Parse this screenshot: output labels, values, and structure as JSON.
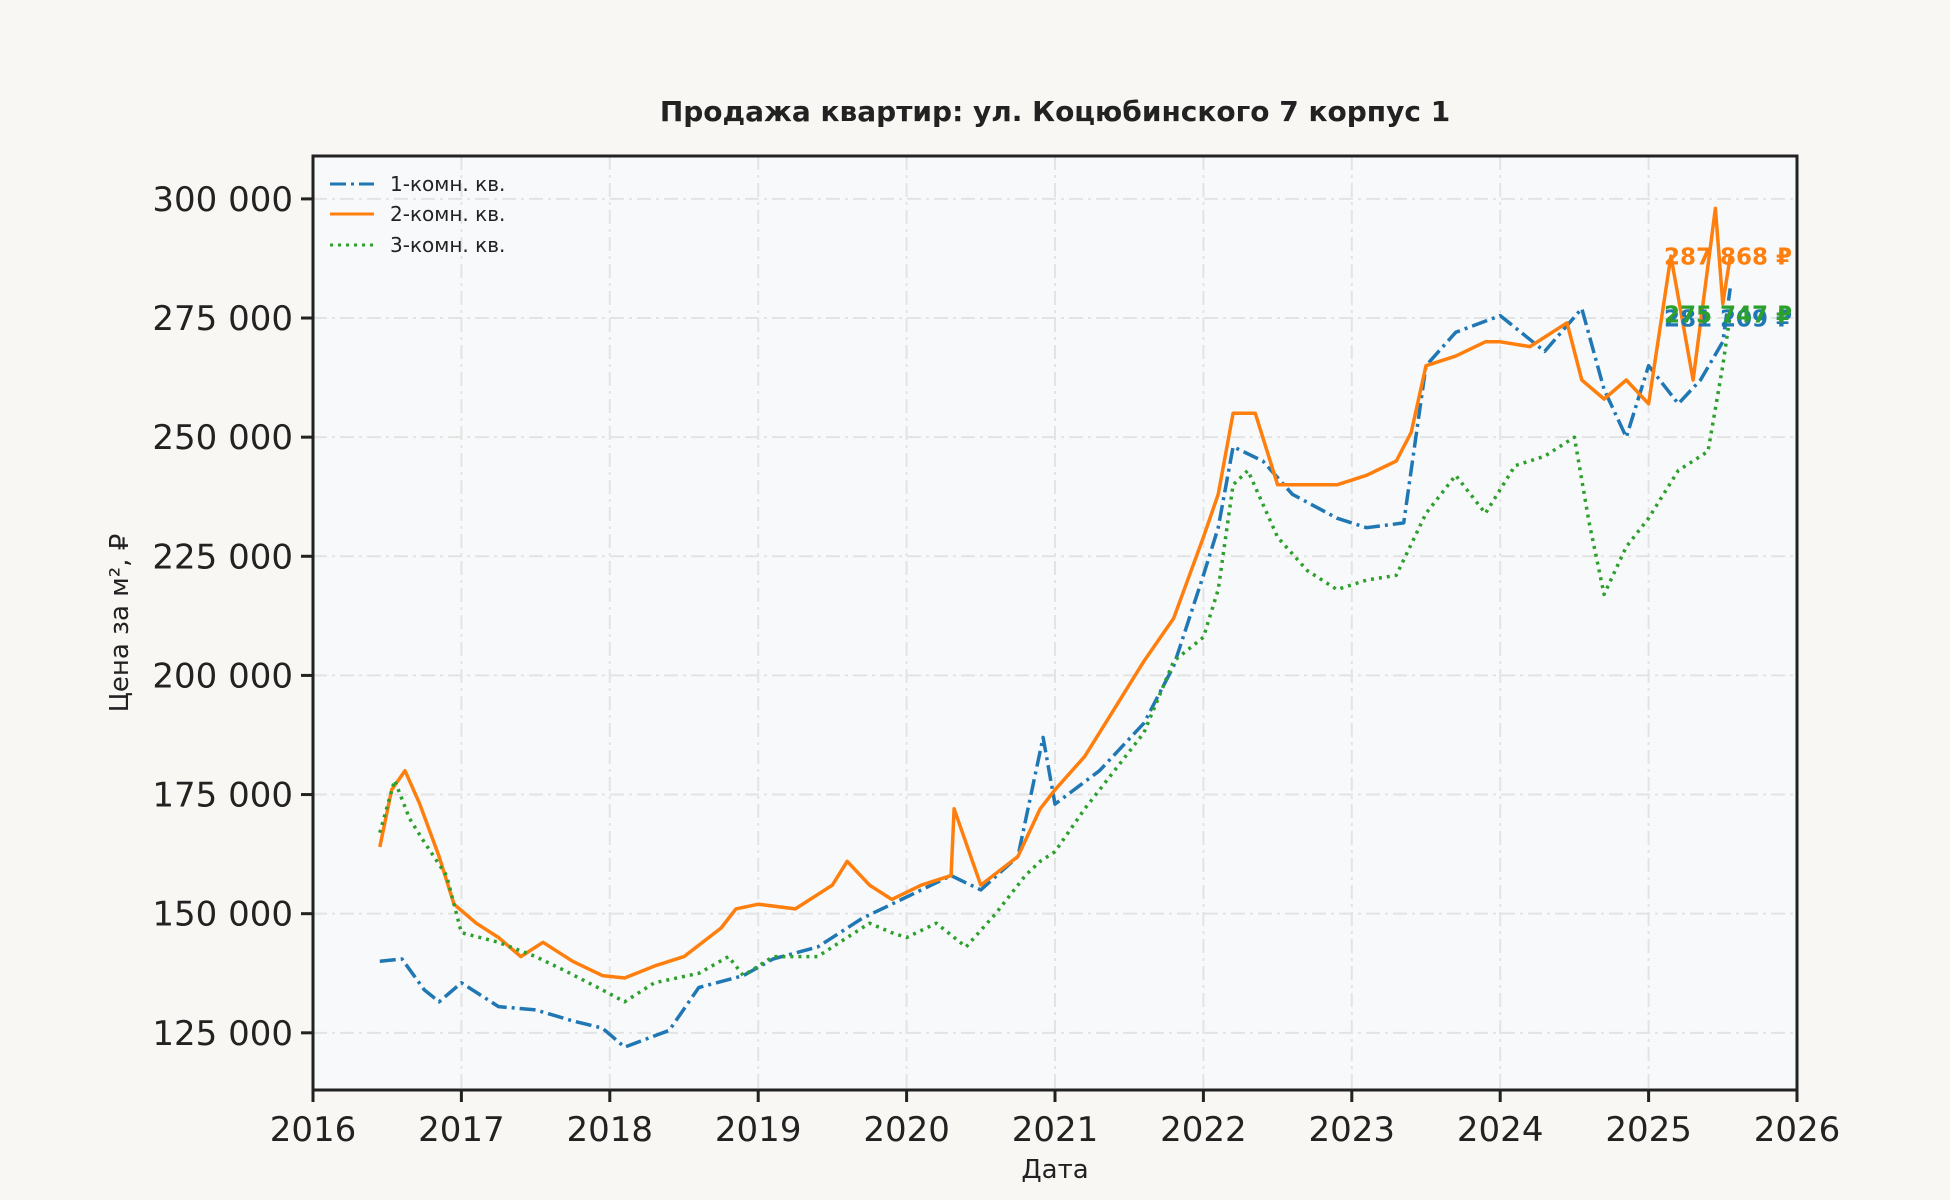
{
  "chart_data": {
    "type": "line",
    "title": "Продажа квартир: ул. Коцюбинского 7 корпус 1",
    "xlabel": "Дата",
    "ylabel": "Цена за м², ₽",
    "xlim": [
      2016,
      2026
    ],
    "ylim": [
      113000,
      309000
    ],
    "x_ticks": [
      "2016",
      "2017",
      "2018",
      "2019",
      "2020",
      "2021",
      "2022",
      "2023",
      "2024",
      "2025",
      "2026"
    ],
    "y_ticks": [
      "125 000",
      "150 000",
      "175 000",
      "200 000",
      "225 000",
      "250 000",
      "275 000",
      "300 000"
    ],
    "y_tick_values": [
      125000,
      150000,
      175000,
      200000,
      225000,
      250000,
      275000,
      300000
    ],
    "grid": true,
    "legend": "top-left",
    "series": [
      {
        "name": "1-комн. кв.",
        "color": "#1f77b4",
        "style": "dashdot",
        "end_label": "281 209 ₽",
        "x": [
          2016.45,
          2016.6,
          2016.75,
          2016.85,
          2017.0,
          2017.25,
          2017.5,
          2017.75,
          2017.95,
          2018.1,
          2018.4,
          2018.6,
          2018.9,
          2019.1,
          2019.4,
          2019.7,
          2020.0,
          2020.3,
          2020.5,
          2020.75,
          2020.92,
          2021.0,
          2021.3,
          2021.6,
          2021.8,
          2022.0,
          2022.1,
          2022.2,
          2022.4,
          2022.6,
          2022.9,
          2023.1,
          2023.35,
          2023.5,
          2023.7,
          2024.0,
          2024.3,
          2024.55,
          2024.7,
          2024.85,
          2025.0,
          2025.2,
          2025.35,
          2025.5,
          2025.55
        ],
        "y": [
          140000,
          140500,
          134000,
          131500,
          135500,
          130500,
          129800,
          127500,
          126000,
          122000,
          125500,
          134500,
          137000,
          140500,
          143000,
          149000,
          153500,
          158000,
          155000,
          162000,
          187000,
          173000,
          180000,
          190000,
          202000,
          221000,
          231000,
          248000,
          245000,
          238000,
          233000,
          231000,
          232000,
          265000,
          272000,
          275500,
          268000,
          277000,
          260000,
          250000,
          265000,
          257000,
          262000,
          270000,
          281209
        ]
      },
      {
        "name": "2-комн. кв.",
        "color": "#ff7f0e",
        "style": "solid",
        "end_label": "287 868 ₽",
        "x": [
          2016.45,
          2016.53,
          2016.62,
          2016.72,
          2016.85,
          2016.95,
          2017.1,
          2017.25,
          2017.4,
          2017.55,
          2017.75,
          2017.95,
          2018.1,
          2018.3,
          2018.5,
          2018.75,
          2018.85,
          2019.0,
          2019.25,
          2019.5,
          2019.6,
          2019.75,
          2019.9,
          2020.1,
          2020.3,
          2020.32,
          2020.5,
          2020.75,
          2020.9,
          2021.0,
          2021.2,
          2021.4,
          2021.6,
          2021.8,
          2022.0,
          2022.1,
          2022.2,
          2022.35,
          2022.5,
          2022.7,
          2022.9,
          2023.1,
          2023.3,
          2023.4,
          2023.5,
          2023.7,
          2023.9,
          2024.0,
          2024.2,
          2024.45,
          2024.55,
          2024.7,
          2024.85,
          2025.0,
          2025.15,
          2025.3,
          2025.45,
          2025.5,
          2025.55
        ],
        "y": [
          164000,
          176000,
          180000,
          173000,
          162000,
          152000,
          148000,
          145000,
          141000,
          144000,
          140000,
          137000,
          136500,
          139000,
          141000,
          147000,
          151000,
          152000,
          151000,
          156000,
          161000,
          156000,
          153000,
          156000,
          158000,
          172000,
          156000,
          162000,
          172000,
          176000,
          183000,
          193000,
          203000,
          212000,
          229000,
          238000,
          255000,
          255000,
          240000,
          240000,
          240000,
          242000,
          245000,
          251000,
          265000,
          267000,
          270000,
          270000,
          269000,
          274000,
          262000,
          258000,
          262000,
          257000,
          288000,
          262000,
          298000,
          278000,
          287868
        ]
      },
      {
        "name": "3-комн. кв.",
        "color": "#2ca02c",
        "style": "dotted",
        "end_label": "275 747 ₽",
        "x": [
          2016.45,
          2016.55,
          2016.65,
          2016.75,
          2016.9,
          2017.0,
          2017.25,
          2017.5,
          2017.7,
          2017.95,
          2018.1,
          2018.3,
          2018.6,
          2018.8,
          2018.9,
          2019.1,
          2019.4,
          2019.6,
          2019.75,
          2019.9,
          2020.0,
          2020.2,
          2020.4,
          2020.6,
          2020.8,
          2020.9,
          2021.0,
          2021.2,
          2021.4,
          2021.6,
          2021.8,
          2022.0,
          2022.1,
          2022.2,
          2022.3,
          2022.5,
          2022.7,
          2022.9,
          2023.1,
          2023.3,
          2023.5,
          2023.7,
          2023.9,
          2024.1,
          2024.3,
          2024.5,
          2024.6,
          2024.7,
          2024.85,
          2025.0,
          2025.2,
          2025.4,
          2025.5,
          2025.55
        ],
        "y": [
          167000,
          178000,
          170000,
          165000,
          158000,
          146000,
          144000,
          141000,
          138000,
          134000,
          131500,
          135500,
          137500,
          141000,
          137000,
          141000,
          141000,
          145000,
          148000,
          146000,
          145000,
          148000,
          143000,
          150000,
          158000,
          161000,
          163000,
          172000,
          180000,
          188000,
          203000,
          208000,
          218000,
          240000,
          243000,
          229000,
          222000,
          218000,
          220000,
          221000,
          234000,
          242000,
          234000,
          244000,
          246000,
          250000,
          232000,
          217000,
          227000,
          233000,
          243000,
          247000,
          265000,
          275747
        ]
      }
    ]
  }
}
